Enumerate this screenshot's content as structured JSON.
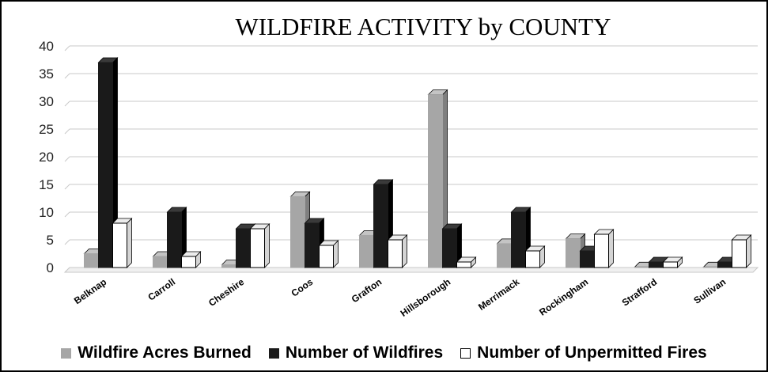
{
  "chart_data": {
    "type": "bar",
    "title": "WILDFIRE ACTIVITY by COUNTY",
    "xlabel": "",
    "ylabel": "",
    "ylim": [
      0,
      40
    ],
    "yticks": [
      0,
      5,
      10,
      15,
      20,
      25,
      30,
      35,
      40
    ],
    "categories": [
      "Belknap",
      "Carroll",
      "Cheshire",
      "Coos",
      "Grafton",
      "Hillsborough",
      "Merrimack",
      "Rockingham",
      "Strafford",
      "Sullivan"
    ],
    "series": [
      {
        "name": "Wildfire Acres Burned",
        "values": [
          2.5,
          2,
          0.5,
          12.8,
          5.8,
          31.2,
          4.3,
          5.2,
          0.1,
          0.1
        ],
        "color": "#a6a6a6"
      },
      {
        "name": "Number of Wildfires",
        "values": [
          37,
          10,
          7,
          8,
          15,
          7,
          10,
          3,
          1,
          1
        ],
        "color": "#1a1a1a"
      },
      {
        "name": "Number of Unpermitted Fires",
        "values": [
          8,
          2,
          7,
          4,
          5,
          1,
          3,
          6,
          1,
          5
        ],
        "color": "#ffffff"
      }
    ],
    "grid": true,
    "legend_position": "bottom"
  }
}
